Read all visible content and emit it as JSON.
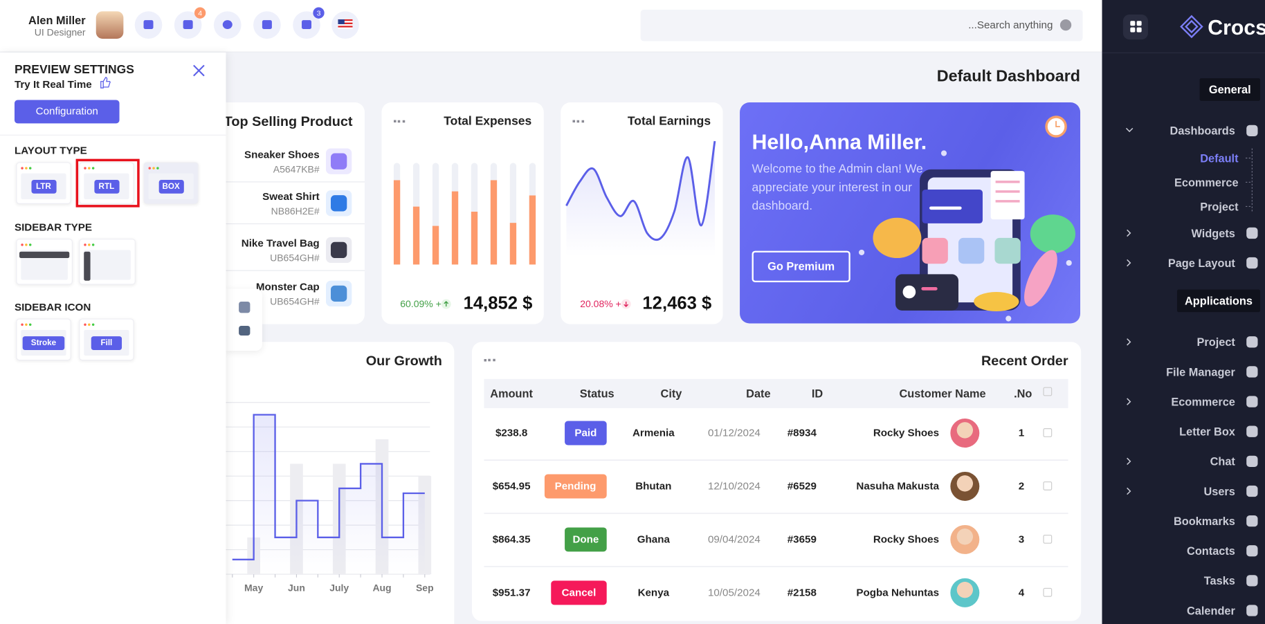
{
  "header": {
    "user_name": "Alen Miller",
    "user_role": "UI Designer",
    "mail_badge": "4",
    "notification_badge": "3",
    "search_placeholder": "...Search anything"
  },
  "page_title": "Default Dashboard",
  "top_selling": {
    "title": "Top Selling Product",
    "products": [
      {
        "name": "Sneaker Shoes",
        "code": "A5647KB#"
      },
      {
        "name": "Sweat Shirt",
        "code": "NB86H2E#"
      },
      {
        "name": "Nike Travel Bag",
        "code": "UB654GH#"
      },
      {
        "name": "Monster Cap",
        "code": "UB654GH#"
      }
    ]
  },
  "stats": [
    {
      "change": "60.09% +",
      "total": "14,852 $"
    },
    {
      "change": "20.08% +",
      "total": "12,463 $"
    }
  ],
  "chart_data": [
    {
      "type": "bar",
      "title": "Total Expenses",
      "categories": [
        null,
        null,
        null,
        null,
        null,
        null,
        null,
        null
      ],
      "values": [
        83,
        57,
        38,
        72,
        52,
        83,
        41,
        68
      ],
      "ylim": [
        0,
        100
      ],
      "color": "#fd9a6c",
      "track_color": "#eef0f6"
    },
    {
      "type": "line",
      "title": "Total Earnings",
      "categories": [
        null,
        null,
        null,
        null,
        null,
        null,
        null,
        null,
        null,
        null,
        null,
        null
      ],
      "values": [
        44,
        65,
        76,
        51,
        35,
        48,
        20,
        16,
        39,
        86,
        27,
        100
      ],
      "ylim": [
        0,
        100
      ],
      "color": "#5b5fe8"
    },
    {
      "type": "step",
      "title": "Our Growth",
      "categories": [
        null,
        "May",
        null,
        "Jun",
        null,
        "July",
        null,
        "Aug",
        null,
        "Sep"
      ],
      "series": [
        {
          "type": "step",
          "color": "#5b5fe8",
          "values": [
            6,
            65,
            15,
            30,
            15,
            35,
            45,
            15,
            33,
            33
          ]
        },
        {
          "type": "bar",
          "color": "#ededf1",
          "values": [
            null,
            15,
            null,
            45,
            null,
            45,
            null,
            55,
            null,
            40
          ]
        }
      ],
      "ylim": [
        0,
        70
      ],
      "grid": true
    }
  ],
  "hello": {
    "title": "Hello,Anna Miller.",
    "text": "Welcome to the Admin clan! We appreciate your interest in our dashboard.",
    "button": "Go Premium"
  },
  "table": {
    "title": "Recent Order",
    "columns": [
      "Amount",
      "Status",
      "City",
      "Date",
      "ID",
      "Customer Name",
      ".No"
    ],
    "status_colors": [
      "#5b5fe8",
      "#fd9a6c",
      "#43a047",
      "#f5195a"
    ],
    "rows": [
      [
        "$238.8",
        "Paid",
        "Armenia",
        "01/12/2024",
        "#8934",
        "Rocky Shoes",
        "1"
      ],
      [
        "$654.95",
        "Pending",
        "Bhutan",
        "12/10/2024",
        "#6529",
        "Nasuha Makusta",
        "2"
      ],
      [
        "$864.35",
        "Done",
        "Ghana",
        "09/04/2024",
        "#3659",
        "Rocky Shoes",
        "3"
      ],
      [
        "$951.37",
        "Cancel",
        "Kenya",
        "10/05/2024",
        "#2158",
        "Pogba Nehuntas",
        "4"
      ]
    ]
  },
  "sidebar": {
    "logo": "Crocs",
    "sections": [
      {
        "title": "General",
        "items": [
          {
            "label": "Dashboards",
            "children": [
              "Default",
              "Ecommerce",
              "Project"
            ],
            "collapsible": true
          },
          {
            "label": "Widgets",
            "collapsible": true
          },
          {
            "label": "Page Layout",
            "collapsible": true
          }
        ]
      },
      {
        "title": "Applications",
        "items": [
          {
            "label": "Project",
            "collapsible": true
          },
          {
            "label": "File Manager"
          },
          {
            "label": "Ecommerce",
            "collapsible": true
          },
          {
            "label": "Letter Box"
          },
          {
            "label": "Chat",
            "collapsible": true
          },
          {
            "label": "Users",
            "collapsible": true
          },
          {
            "label": "Bookmarks"
          },
          {
            "label": "Contacts"
          },
          {
            "label": "Tasks"
          },
          {
            "label": "Calender"
          }
        ]
      }
    ]
  },
  "settings": {
    "title": "PREVIEW SETTINGS",
    "subtitle": "Try It Real Time",
    "button": "Configuration",
    "sections": [
      {
        "title": "LAYOUT TYPE",
        "options": [
          "LTR",
          "RTL",
          "BOX"
        ]
      },
      {
        "title": "SIDEBAR TYPE"
      },
      {
        "title": "SIDEBAR ICON",
        "options": [
          "Stroke",
          "Fill"
        ]
      }
    ]
  }
}
